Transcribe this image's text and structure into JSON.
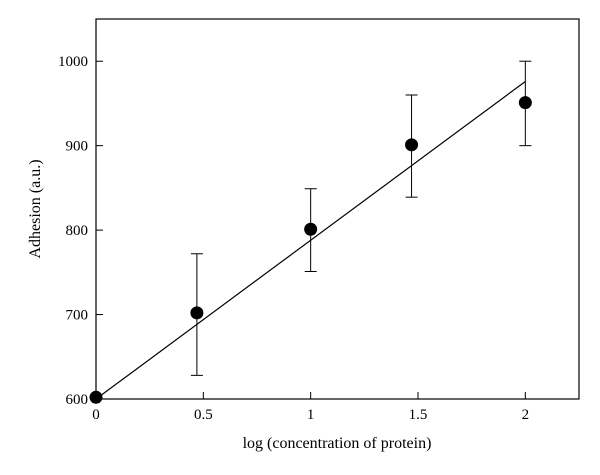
{
  "chart_data": {
    "type": "scatter",
    "xlabel": "log (concentration of protein)",
    "ylabel": "Adhesion (a.u.)",
    "xlim": [
      0,
      2.25
    ],
    "ylim": [
      600,
      1050
    ],
    "x_ticks": [
      0,
      0.5,
      1,
      1.5,
      2
    ],
    "x_tick_labels": [
      "0",
      "0.5",
      "1",
      "1.5",
      "2"
    ],
    "y_ticks": [
      600,
      700,
      800,
      900,
      1000
    ],
    "y_tick_labels": [
      "600",
      "700",
      "800",
      "900",
      "1000"
    ],
    "grid": false,
    "series": [
      {
        "type": "scatter",
        "color": "#000000",
        "points": [
          {
            "x": 0,
            "y": 602,
            "err_low": 602,
            "err_high": 602
          },
          {
            "x": 0.47,
            "y": 702,
            "err_low": 628,
            "err_high": 772
          },
          {
            "x": 1.0,
            "y": 801,
            "err_low": 751,
            "err_high": 849
          },
          {
            "x": 1.47,
            "y": 901,
            "err_low": 839,
            "err_high": 960
          },
          {
            "x": 2.0,
            "y": 951,
            "err_low": 900,
            "err_high": 1000
          }
        ]
      },
      {
        "type": "line",
        "color": "#000000",
        "points": [
          {
            "x": 0,
            "y": 600
          },
          {
            "x": 2.0,
            "y": 976
          }
        ]
      }
    ]
  }
}
